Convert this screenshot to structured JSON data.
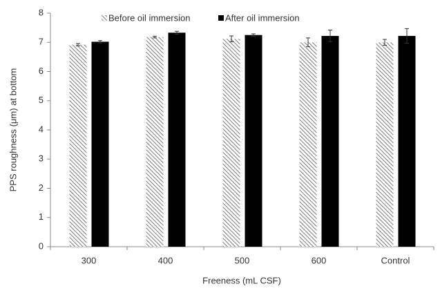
{
  "chart_data": {
    "type": "bar",
    "x_label": "Freeness (mL CSF)",
    "y_label": "PPS roughness (μm) at bottom",
    "categories": [
      "300",
      "400",
      "500",
      "600",
      "Control"
    ],
    "series": [
      {
        "name": "Before oil immersion",
        "color": "#595959",
        "pattern": "diagonal-hatch",
        "values": [
          6.92,
          7.18,
          7.12,
          7.0,
          7.0
        ],
        "errors": [
          0.04,
          0.03,
          0.1,
          0.15,
          0.1
        ]
      },
      {
        "name": "After oil immersion",
        "color": "#000000",
        "pattern": "solid",
        "values": [
          7.02,
          7.33,
          7.25,
          7.22,
          7.22
        ],
        "errors": [
          0.04,
          0.05,
          0.04,
          0.2,
          0.25
        ]
      }
    ],
    "ylim": [
      0,
      8
    ],
    "yticks": [
      0,
      1,
      2,
      3,
      4,
      5,
      6,
      7,
      8
    ],
    "legend": "top"
  }
}
